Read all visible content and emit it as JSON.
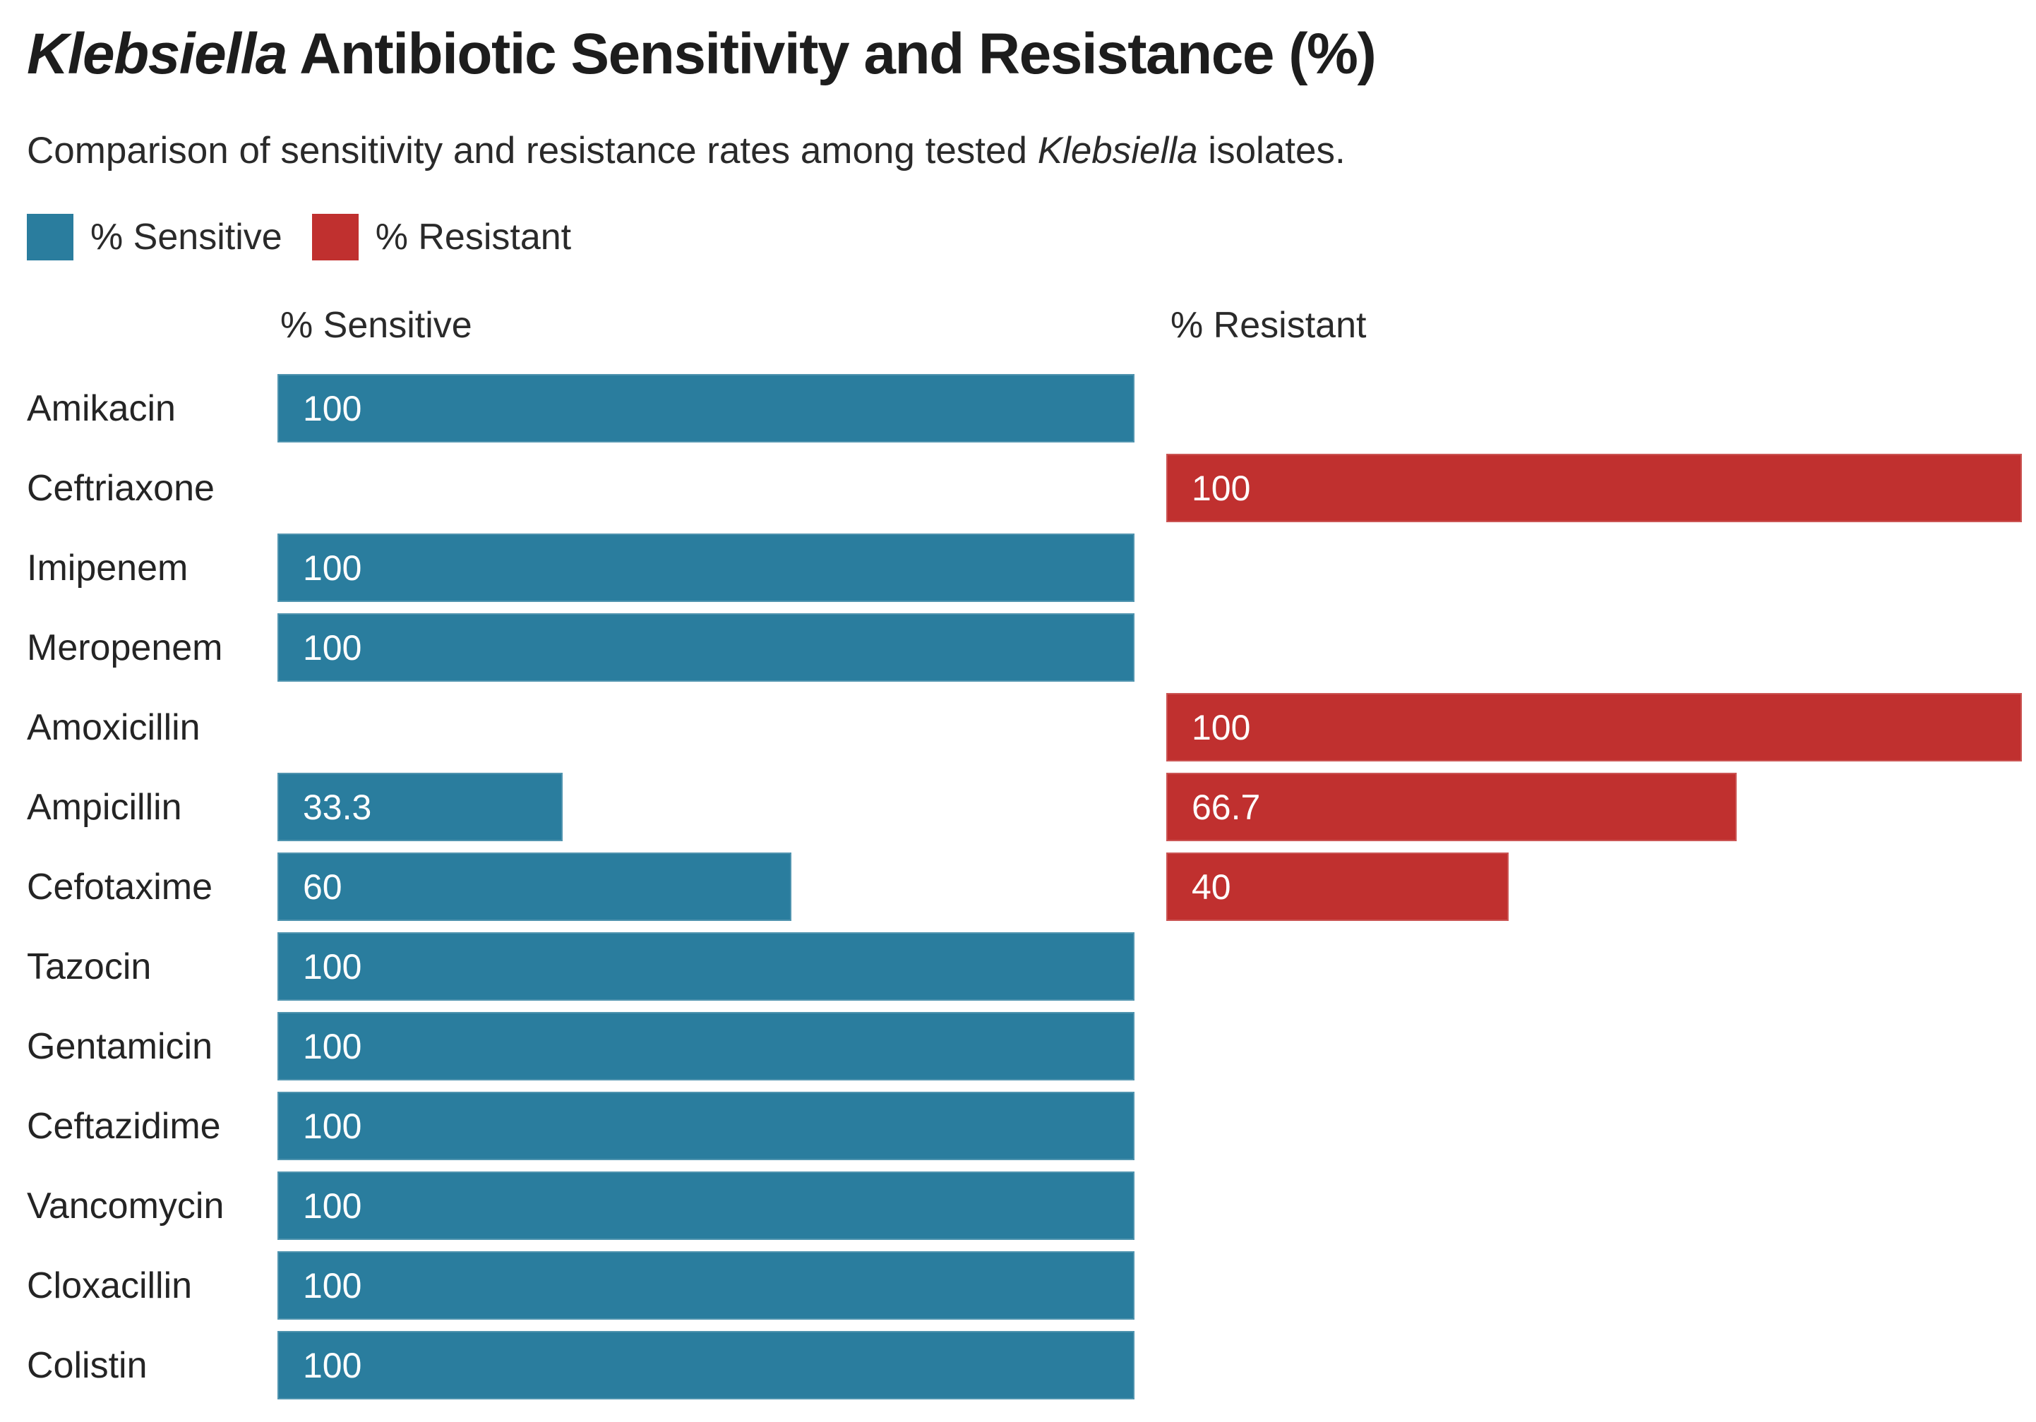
{
  "title": {
    "italic": "Klebsiella",
    "rest": " Antibiotic Sensitivity and Resistance (%)"
  },
  "subtitle": {
    "before": "Comparison of sensitivity and resistance rates among tested ",
    "italic": "Klebsiella",
    "after": " isolates."
  },
  "legend": [
    {
      "label": "% Sensitive",
      "color": "#2a7d9e"
    },
    {
      "label": "% Resistant",
      "color": "#c0302f"
    }
  ],
  "columns": {
    "sensitive_header": "% Sensitive",
    "resistant_header": "% Resistant"
  },
  "colors": {
    "sensitive": "#2a7d9e",
    "resistant": "#c0302f",
    "text": "#222222",
    "bar_label": "#ffffff"
  },
  "chart_data": {
    "type": "bar",
    "orientation": "horizontal",
    "title": "Klebsiella Antibiotic Sensitivity and Resistance (%)",
    "subtitle": "Comparison of sensitivity and resistance rates among tested Klebsiella isolates.",
    "categories": [
      "Amikacin",
      "Ceftriaxone",
      "Imipenem",
      "Meropenem",
      "Amoxicillin",
      "Ampicillin",
      "Cefotaxime",
      "Tazocin",
      "Gentamicin",
      "Ceftazidime",
      "Vancomycin",
      "Cloxacillin",
      "Colistin"
    ],
    "series": [
      {
        "name": "% Sensitive",
        "color": "#2a7d9e",
        "values": [
          100,
          null,
          100,
          100,
          null,
          33.3,
          60,
          100,
          100,
          100,
          100,
          100,
          100
        ]
      },
      {
        "name": "% Resistant",
        "color": "#c0302f",
        "values": [
          null,
          100,
          null,
          null,
          100,
          66.7,
          40,
          null,
          null,
          null,
          null,
          null,
          null
        ]
      }
    ],
    "value_range": [
      0,
      100
    ],
    "value_labels_shown": true,
    "grid": false,
    "axis_ticks_shown": false,
    "legend_position": "top-left"
  }
}
